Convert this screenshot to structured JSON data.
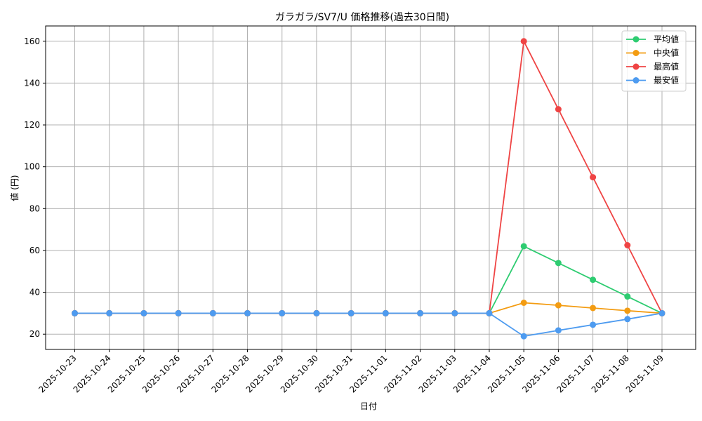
{
  "chart_data": {
    "type": "line",
    "title": "ガラガラ/SV7/U 価格推移(過去30日間)",
    "xlabel": "日付",
    "ylabel": "値 (円)",
    "categories": [
      "2025-10-23",
      "2025-10-24",
      "2025-10-25",
      "2025-10-26",
      "2025-10-27",
      "2025-10-28",
      "2025-10-29",
      "2025-10-30",
      "2025-10-31",
      "2025-11-01",
      "2025-11-02",
      "2025-11-03",
      "2025-11-04",
      "2025-11-05",
      "2025-11-06",
      "2025-11-07",
      "2025-11-08",
      "2025-11-09"
    ],
    "ylim": [
      12.7,
      167.3
    ],
    "yticks": [
      20,
      40,
      60,
      80,
      100,
      120,
      140,
      160
    ],
    "grid": true,
    "legend_position": "top-right",
    "series": [
      {
        "name": "平均値",
        "color": "#2ecc71",
        "values": [
          30,
          30,
          30,
          30,
          30,
          30,
          30,
          30,
          30,
          30,
          30,
          30,
          30,
          62,
          54,
          46,
          38,
          30
        ]
      },
      {
        "name": "中央値",
        "color": "#f39c12",
        "values": [
          30,
          30,
          30,
          30,
          30,
          30,
          30,
          30,
          30,
          30,
          30,
          30,
          30,
          35,
          33.8,
          32.5,
          31.2,
          30
        ]
      },
      {
        "name": "最高値",
        "color": "#ef4444",
        "values": [
          30,
          30,
          30,
          30,
          30,
          30,
          30,
          30,
          30,
          30,
          30,
          30,
          30,
          160,
          127.5,
          95,
          62.5,
          30
        ]
      },
      {
        "name": "最安値",
        "color": "#4d9bf0",
        "values": [
          30,
          30,
          30,
          30,
          30,
          30,
          30,
          30,
          30,
          30,
          30,
          30,
          30,
          19,
          21.8,
          24.5,
          27.2,
          30
        ]
      }
    ]
  }
}
